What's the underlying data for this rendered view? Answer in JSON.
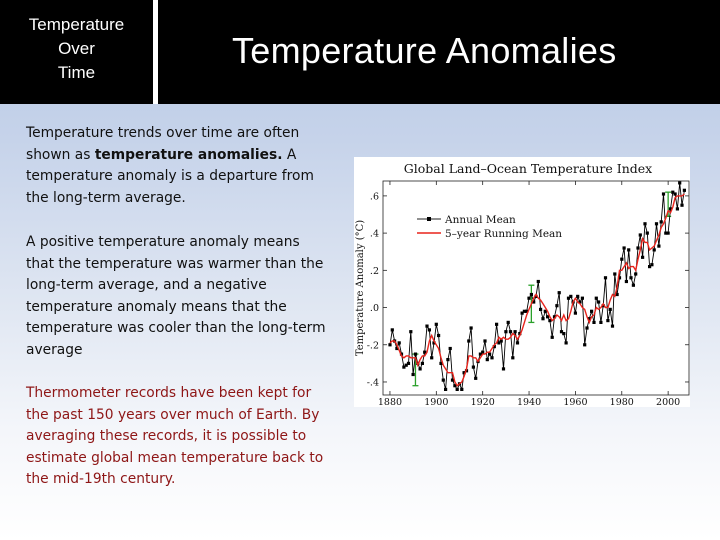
{
  "header": {
    "section_title": [
      "Temperature",
      "Over",
      "Time"
    ],
    "title": "Temperature Anomalies"
  },
  "paragraph1": {
    "pre": "Temperature trends over time are often shown as ",
    "bold": "temperature anomalies.",
    "post": " A temperature anomaly is a departure from the long-term average."
  },
  "paragraph2": "A positive temperature anomaly means that the temperature was warmer than the long-term average, and a negative temperature anomaly means that the temperature was cooler than the long-term average",
  "paragraph3": "Thermometer records have been kept for the past 150 years over much of Earth. By averaging these records, it is possible to estimate global mean temperature back to the mid-19th century.",
  "colors": {
    "header_bg": "#000000",
    "annual": "#000000",
    "running": "#e8241c",
    "error_bar": "#2aa02a",
    "paragraph3_text": "#8e1616"
  },
  "chart_data": {
    "type": "line",
    "title": "Global Land–Ocean Temperature Index",
    "xlabel": "",
    "ylabel": "Temperature Anomaly (°C)",
    "xlim": [
      1877,
      2009
    ],
    "ylim": [
      -0.47,
      0.68
    ],
    "x_ticks": [
      1880,
      1900,
      1920,
      1940,
      1960,
      1980,
      2000
    ],
    "y_ticks": [
      -0.4,
      -0.2,
      0.0,
      0.2,
      0.4,
      0.6
    ],
    "y_tick_labels": [
      "-.4",
      "-.2",
      ".0",
      ".2",
      ".4",
      ".6"
    ],
    "grid": false,
    "legend": "top-left",
    "x_start": 1880,
    "series": [
      {
        "name": "Annual Mean",
        "values": [
          -0.2,
          -0.12,
          -0.18,
          -0.22,
          -0.19,
          -0.25,
          -0.32,
          -0.31,
          -0.3,
          -0.13,
          -0.36,
          -0.25,
          -0.3,
          -0.33,
          -0.3,
          -0.24,
          -0.1,
          -0.12,
          -0.27,
          -0.19,
          -0.09,
          -0.15,
          -0.3,
          -0.39,
          -0.44,
          -0.28,
          -0.22,
          -0.39,
          -0.42,
          -0.44,
          -0.41,
          -0.44,
          -0.35,
          -0.34,
          -0.18,
          -0.11,
          -0.32,
          -0.38,
          -0.29,
          -0.25,
          -0.24,
          -0.18,
          -0.28,
          -0.25,
          -0.27,
          -0.21,
          -0.09,
          -0.19,
          -0.18,
          -0.33,
          -0.13,
          -0.08,
          -0.13,
          -0.27,
          -0.13,
          -0.19,
          -0.14,
          -0.03,
          -0.02,
          -0.02,
          0.05,
          0.07,
          0.03,
          0.06,
          0.14,
          -0.01,
          -0.06,
          -0.02,
          -0.05,
          -0.07,
          -0.16,
          -0.05,
          0.01,
          0.08,
          -0.13,
          -0.14,
          -0.19,
          0.05,
          0.06,
          0.03,
          -0.03,
          0.06,
          0.03,
          0.05,
          -0.2,
          -0.11,
          -0.06,
          -0.02,
          -0.08,
          0.05,
          0.03,
          -0.08,
          0.01,
          0.16,
          -0.07,
          -0.01,
          -0.1,
          0.18,
          0.07,
          0.16,
          0.26,
          0.32,
          0.14,
          0.31,
          0.16,
          0.12,
          0.18,
          0.32,
          0.39,
          0.27,
          0.45,
          0.4,
          0.22,
          0.23,
          0.31,
          0.45,
          0.33,
          0.46,
          0.61,
          0.4,
          0.4,
          0.53,
          0.62,
          0.61,
          0.53,
          0.67,
          0.55,
          0.63
        ]
      },
      {
        "name": "5–year Running Mean",
        "values": [
          -0.19,
          -0.18,
          -0.18,
          -0.2,
          -0.23,
          -0.26,
          -0.27,
          -0.26,
          -0.26,
          -0.27,
          -0.27,
          -0.27,
          -0.31,
          -0.28,
          -0.26,
          -0.26,
          -0.24,
          -0.18,
          -0.15,
          -0.18,
          -0.2,
          -0.22,
          -0.27,
          -0.31,
          -0.33,
          -0.35,
          -0.35,
          -0.35,
          -0.4,
          -0.42,
          -0.41,
          -0.4,
          -0.37,
          -0.33,
          -0.26,
          -0.26,
          -0.27,
          -0.27,
          -0.29,
          -0.27,
          -0.25,
          -0.25,
          -0.24,
          -0.24,
          -0.22,
          -0.2,
          -0.19,
          -0.16,
          -0.17,
          -0.16,
          -0.17,
          -0.17,
          -0.16,
          -0.14,
          -0.15,
          -0.17,
          -0.15,
          -0.12,
          -0.08,
          -0.04,
          -0.01,
          0.02,
          0.05,
          0.07,
          0.05,
          0.04,
          0.02,
          0.0,
          -0.02,
          -0.05,
          -0.07,
          -0.06,
          -0.04,
          -0.05,
          -0.07,
          -0.04,
          -0.07,
          -0.06,
          -0.02,
          0.03,
          0.05,
          0.03,
          0.02,
          0.0,
          -0.01,
          -0.05,
          -0.08,
          -0.05,
          -0.04,
          0.0,
          -0.01,
          0.0,
          0.02,
          0.0,
          0.0,
          0.04,
          0.07,
          0.06,
          0.11,
          0.2,
          0.2,
          0.22,
          0.24,
          0.21,
          0.22,
          0.22,
          0.2,
          0.26,
          0.31,
          0.37,
          0.35,
          0.35,
          0.31,
          0.32,
          0.33,
          0.36,
          0.39,
          0.43,
          0.45,
          0.48,
          0.52,
          0.51,
          0.54,
          0.59,
          0.6,
          0.6,
          0.6,
          0.61
        ]
      }
    ],
    "error_bars": [
      {
        "x": 1891,
        "low": -0.42,
        "high": -0.25
      },
      {
        "x": 1941,
        "low": -0.08,
        "high": 0.12
      },
      {
        "x": 2000,
        "low": 0.49,
        "high": 0.62
      }
    ]
  }
}
